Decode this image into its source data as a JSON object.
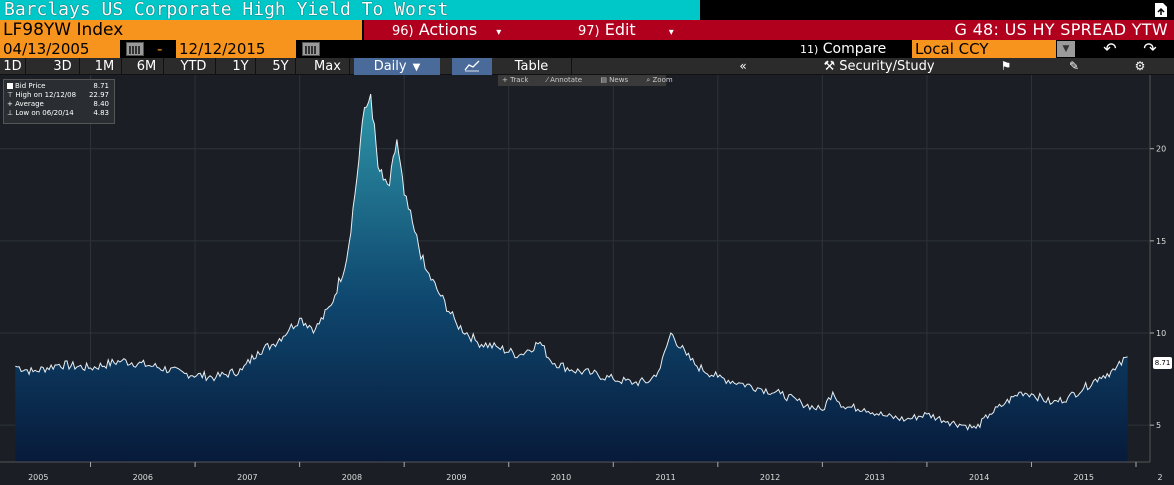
{
  "window": {
    "title": "Barclays US Corporate High Yield To Worst"
  },
  "security": {
    "ticker": "LF98YW Index"
  },
  "menu": {
    "actions_num": "96)",
    "actions_label": "Actions",
    "edit_num": "97)",
    "edit_label": "Edit",
    "graph_title": "G 48: US HY SPREAD YTW"
  },
  "date_range": {
    "start": "04/13/2005",
    "separator": "-",
    "end": "12/12/2015"
  },
  "compare": {
    "num": "11)",
    "label": "Compare",
    "currency": "Local CCY"
  },
  "toolbar": {
    "periods": [
      "1D",
      "3D",
      "1M",
      "6M",
      "YTD",
      "1Y",
      "5Y",
      "Max"
    ],
    "frequency": "Daily",
    "table_label": "Table",
    "security_study_label": "Security/Study"
  },
  "chart_tools": {
    "track": "Track",
    "annotate": "Annotate",
    "news": "News",
    "zoom": "Zoom"
  },
  "legend": {
    "series_label": "Bid Price",
    "series_value": "8.71",
    "high_label": "High on 12/12/08",
    "high_value": "22.97",
    "average_label": "Average",
    "average_value": "8.40",
    "low_label": "Low on 06/20/14",
    "low_value": "4.83"
  },
  "colors": {
    "title_bg": "#00c8c8",
    "orange": "#f7941d",
    "red_bar": "#b0001e",
    "chart_bg": "#1b1f25",
    "area_top": "#2f97a8",
    "area_bottom": "#071a3a"
  },
  "chart_data": {
    "type": "area",
    "title": "",
    "xlabel": "",
    "ylabel": "",
    "ylim": [
      3,
      24
    ],
    "x_ticks": [
      "2005",
      "2006",
      "2007",
      "2008",
      "2009",
      "2010",
      "2011",
      "2012",
      "2013",
      "2014",
      "2015",
      "2"
    ],
    "y_ticks": [
      5,
      10,
      15,
      20
    ],
    "last_value_label": "8.71",
    "series": [
      {
        "name": "Bid Price",
        "x": [
          2005.28,
          2005.45,
          2005.7,
          2006.0,
          2006.3,
          2006.6,
          2006.9,
          2007.2,
          2007.45,
          2007.6,
          2007.75,
          2007.9,
          2008.0,
          2008.15,
          2008.3,
          2008.45,
          2008.55,
          2008.6,
          2008.68,
          2008.75,
          2008.8,
          2008.86,
          2008.93,
          2009.0,
          2009.1,
          2009.2,
          2009.35,
          2009.5,
          2009.7,
          2009.9,
          2010.1,
          2010.3,
          2010.4,
          2010.6,
          2010.8,
          2011.0,
          2011.2,
          2011.35,
          2011.45,
          2011.55,
          2011.7,
          2011.8,
          2012.0,
          2012.2,
          2012.4,
          2012.6,
          2012.8,
          2013.0,
          2013.1,
          2013.2,
          2013.4,
          2013.6,
          2013.8,
          2014.0,
          2014.2,
          2014.35,
          2014.47,
          2014.6,
          2014.75,
          2014.9,
          2015.0,
          2015.2,
          2015.35,
          2015.5,
          2015.65,
          2015.8,
          2015.92
        ],
        "values": [
          8.2,
          7.9,
          8.3,
          8.1,
          8.5,
          8.2,
          7.8,
          7.6,
          8.0,
          9.0,
          9.4,
          10.2,
          10.8,
          10.2,
          11.5,
          14.0,
          18.5,
          21.5,
          22.97,
          19.0,
          18.3,
          18.0,
          20.5,
          17.5,
          15.5,
          13.5,
          12.0,
          10.5,
          9.5,
          9.2,
          8.8,
          9.5,
          8.5,
          8.0,
          7.8,
          7.5,
          7.3,
          7.4,
          8.1,
          10.0,
          8.8,
          8.2,
          7.6,
          7.3,
          7.0,
          6.7,
          6.2,
          5.8,
          6.8,
          6.0,
          5.9,
          5.5,
          5.3,
          5.6,
          5.2,
          5.0,
          4.83,
          5.6,
          6.2,
          6.8,
          6.7,
          6.2,
          6.5,
          7.0,
          7.6,
          8.0,
          8.71
        ]
      }
    ]
  }
}
